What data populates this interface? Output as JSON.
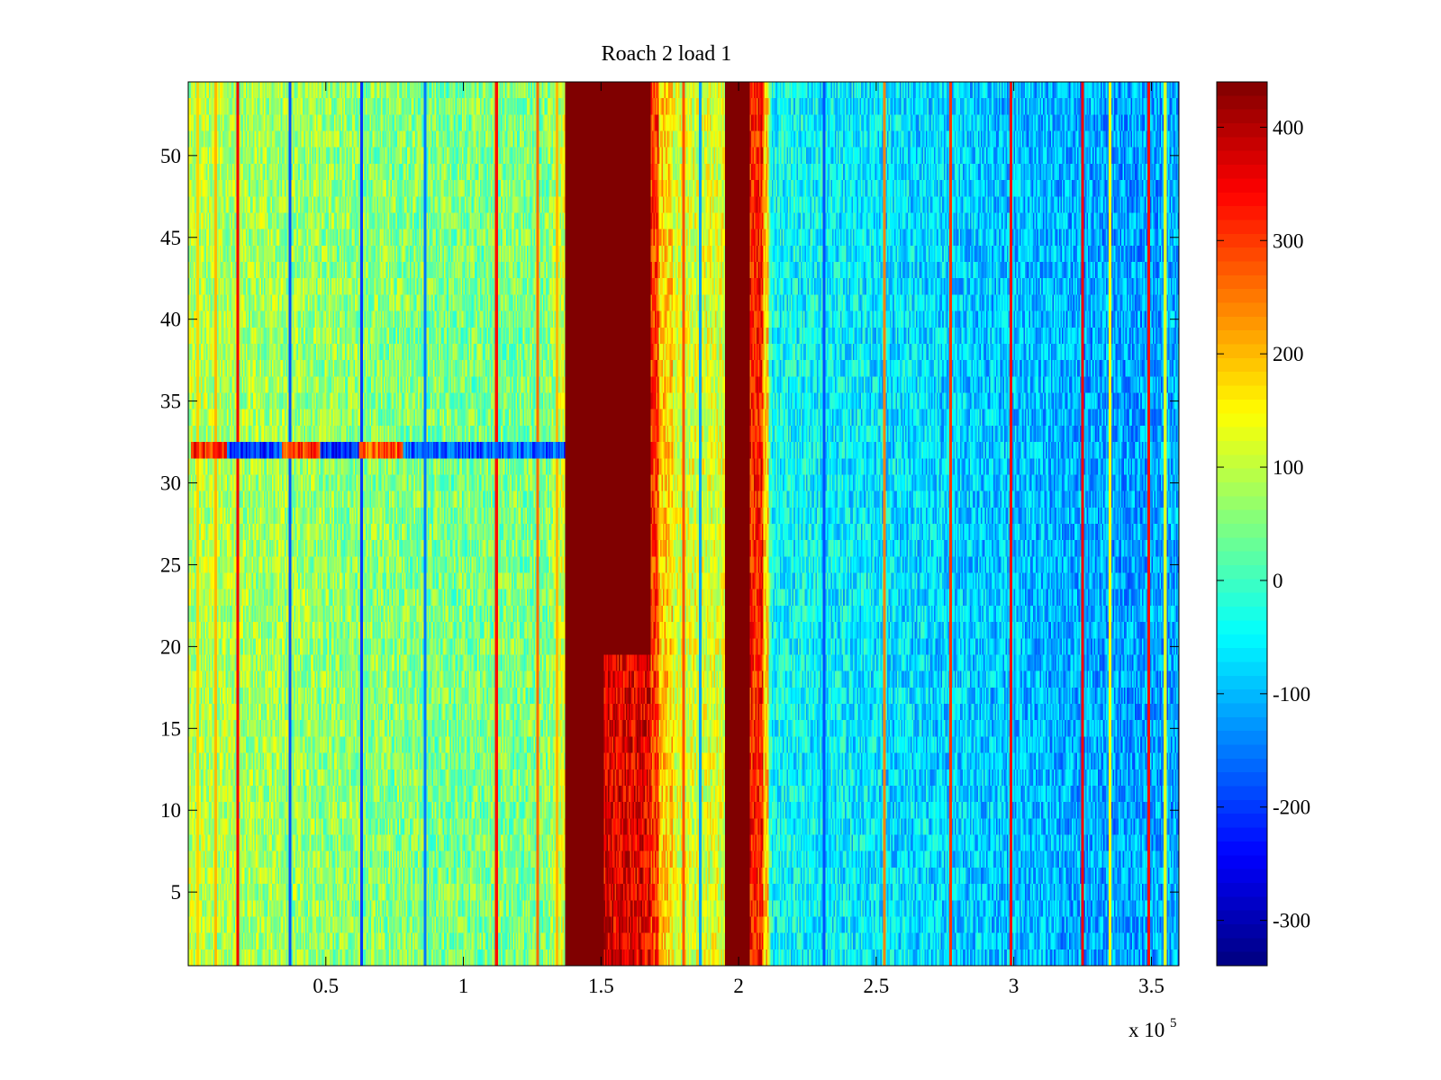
{
  "chart_data": {
    "type": "heatmap",
    "title": "Roach 2 load 1",
    "xlabel": "",
    "ylabel": "",
    "x_exponent_label": "x 10",
    "x_exponent_power": "5",
    "xlim": [
      0,
      360000
    ],
    "ylim": [
      0.5,
      54.5
    ],
    "rows": 54,
    "colormap": "jet",
    "x_ticks": [
      {
        "value": 50000,
        "label": "0.5"
      },
      {
        "value": 100000,
        "label": "1"
      },
      {
        "value": 150000,
        "label": "1.5"
      },
      {
        "value": 200000,
        "label": "2"
      },
      {
        "value": 250000,
        "label": "2.5"
      },
      {
        "value": 300000,
        "label": "3"
      },
      {
        "value": 350000,
        "label": "3.5"
      }
    ],
    "y_ticks": [
      {
        "value": 5,
        "label": "5"
      },
      {
        "value": 10,
        "label": "10"
      },
      {
        "value": 15,
        "label": "15"
      },
      {
        "value": 20,
        "label": "20"
      },
      {
        "value": 25,
        "label": "25"
      },
      {
        "value": 30,
        "label": "30"
      },
      {
        "value": 35,
        "label": "35"
      },
      {
        "value": 40,
        "label": "40"
      },
      {
        "value": 45,
        "label": "45"
      },
      {
        "value": 50,
        "label": "50"
      }
    ],
    "colorbar": {
      "range": [
        -340,
        440
      ],
      "ticks": [
        {
          "value": 400,
          "label": "400"
        },
        {
          "value": 300,
          "label": "300"
        },
        {
          "value": 200,
          "label": "200"
        },
        {
          "value": 100,
          "label": "100"
        },
        {
          "value": 0,
          "label": "0"
        },
        {
          "value": -100,
          "label": "-100"
        },
        {
          "value": -200,
          "label": "-200"
        },
        {
          "value": -300,
          "label": "-300"
        }
      ]
    },
    "background_profile": [
      {
        "x": 0,
        "value": 95
      },
      {
        "x": 20000,
        "value": 80
      },
      {
        "x": 60000,
        "value": 60
      },
      {
        "x": 100000,
        "value": 45
      },
      {
        "x": 130000,
        "value": 50
      },
      {
        "x": 137000,
        "value": 120
      },
      {
        "x": 210000,
        "value": 120
      },
      {
        "x": 212000,
        "value": -40
      },
      {
        "x": 260000,
        "value": -70
      },
      {
        "x": 310000,
        "value": -100
      },
      {
        "x": 340000,
        "value": -120
      },
      {
        "x": 360000,
        "value": -110
      }
    ],
    "bands": [
      {
        "x_start": 137000,
        "x_end": 151000,
        "value": 440,
        "rows": "all"
      },
      {
        "x_start": 151000,
        "x_end": 168000,
        "value": 440,
        "rows": "20-54",
        "value_other_rows": 360
      },
      {
        "x_start": 168000,
        "x_end": 171000,
        "value": 300,
        "rows": "all"
      },
      {
        "x_start": 171000,
        "x_end": 176000,
        "value": 180,
        "rows": "all"
      },
      {
        "x_start": 195000,
        "x_end": 204000,
        "value": 440,
        "rows": "all"
      },
      {
        "x_start": 204000,
        "x_end": 209000,
        "value": 320,
        "rows": "all"
      },
      {
        "x_start": 209000,
        "x_end": 211000,
        "value": 180,
        "rows": "all"
      }
    ],
    "stripes": [
      {
        "x": 3500,
        "value": 180
      },
      {
        "x": 10000,
        "value": 200
      },
      {
        "x": 18000,
        "value": 350
      },
      {
        "x": 37000,
        "value": -180
      },
      {
        "x": 63000,
        "value": -200
      },
      {
        "x": 86000,
        "value": -150
      },
      {
        "x": 112000,
        "value": 330
      },
      {
        "x": 127000,
        "value": 260
      },
      {
        "x": 134000,
        "value": 200
      },
      {
        "x": 180000,
        "value": 280
      },
      {
        "x": 186000,
        "value": -120
      },
      {
        "x": 231000,
        "value": -180
      },
      {
        "x": 253000,
        "value": 240
      },
      {
        "x": 277000,
        "value": 300
      },
      {
        "x": 299000,
        "value": 330
      },
      {
        "x": 325000,
        "value": 350
      },
      {
        "x": 335000,
        "value": 150
      },
      {
        "x": 349000,
        "value": 330
      },
      {
        "x": 355000,
        "value": 120
      }
    ],
    "row_anomaly": {
      "row": 32,
      "x_end": 137000,
      "segments": [
        {
          "x_start": 1000,
          "x_end": 14000,
          "value": 320
        },
        {
          "x_start": 14000,
          "x_end": 34000,
          "value": -200
        },
        {
          "x_start": 34000,
          "x_end": 48000,
          "value": 300
        },
        {
          "x_start": 48000,
          "x_end": 62000,
          "value": -220
        },
        {
          "x_start": 62000,
          "x_end": 78000,
          "value": 280
        },
        {
          "x_start": 78000,
          "x_end": 137000,
          "value": -170
        }
      ]
    }
  }
}
